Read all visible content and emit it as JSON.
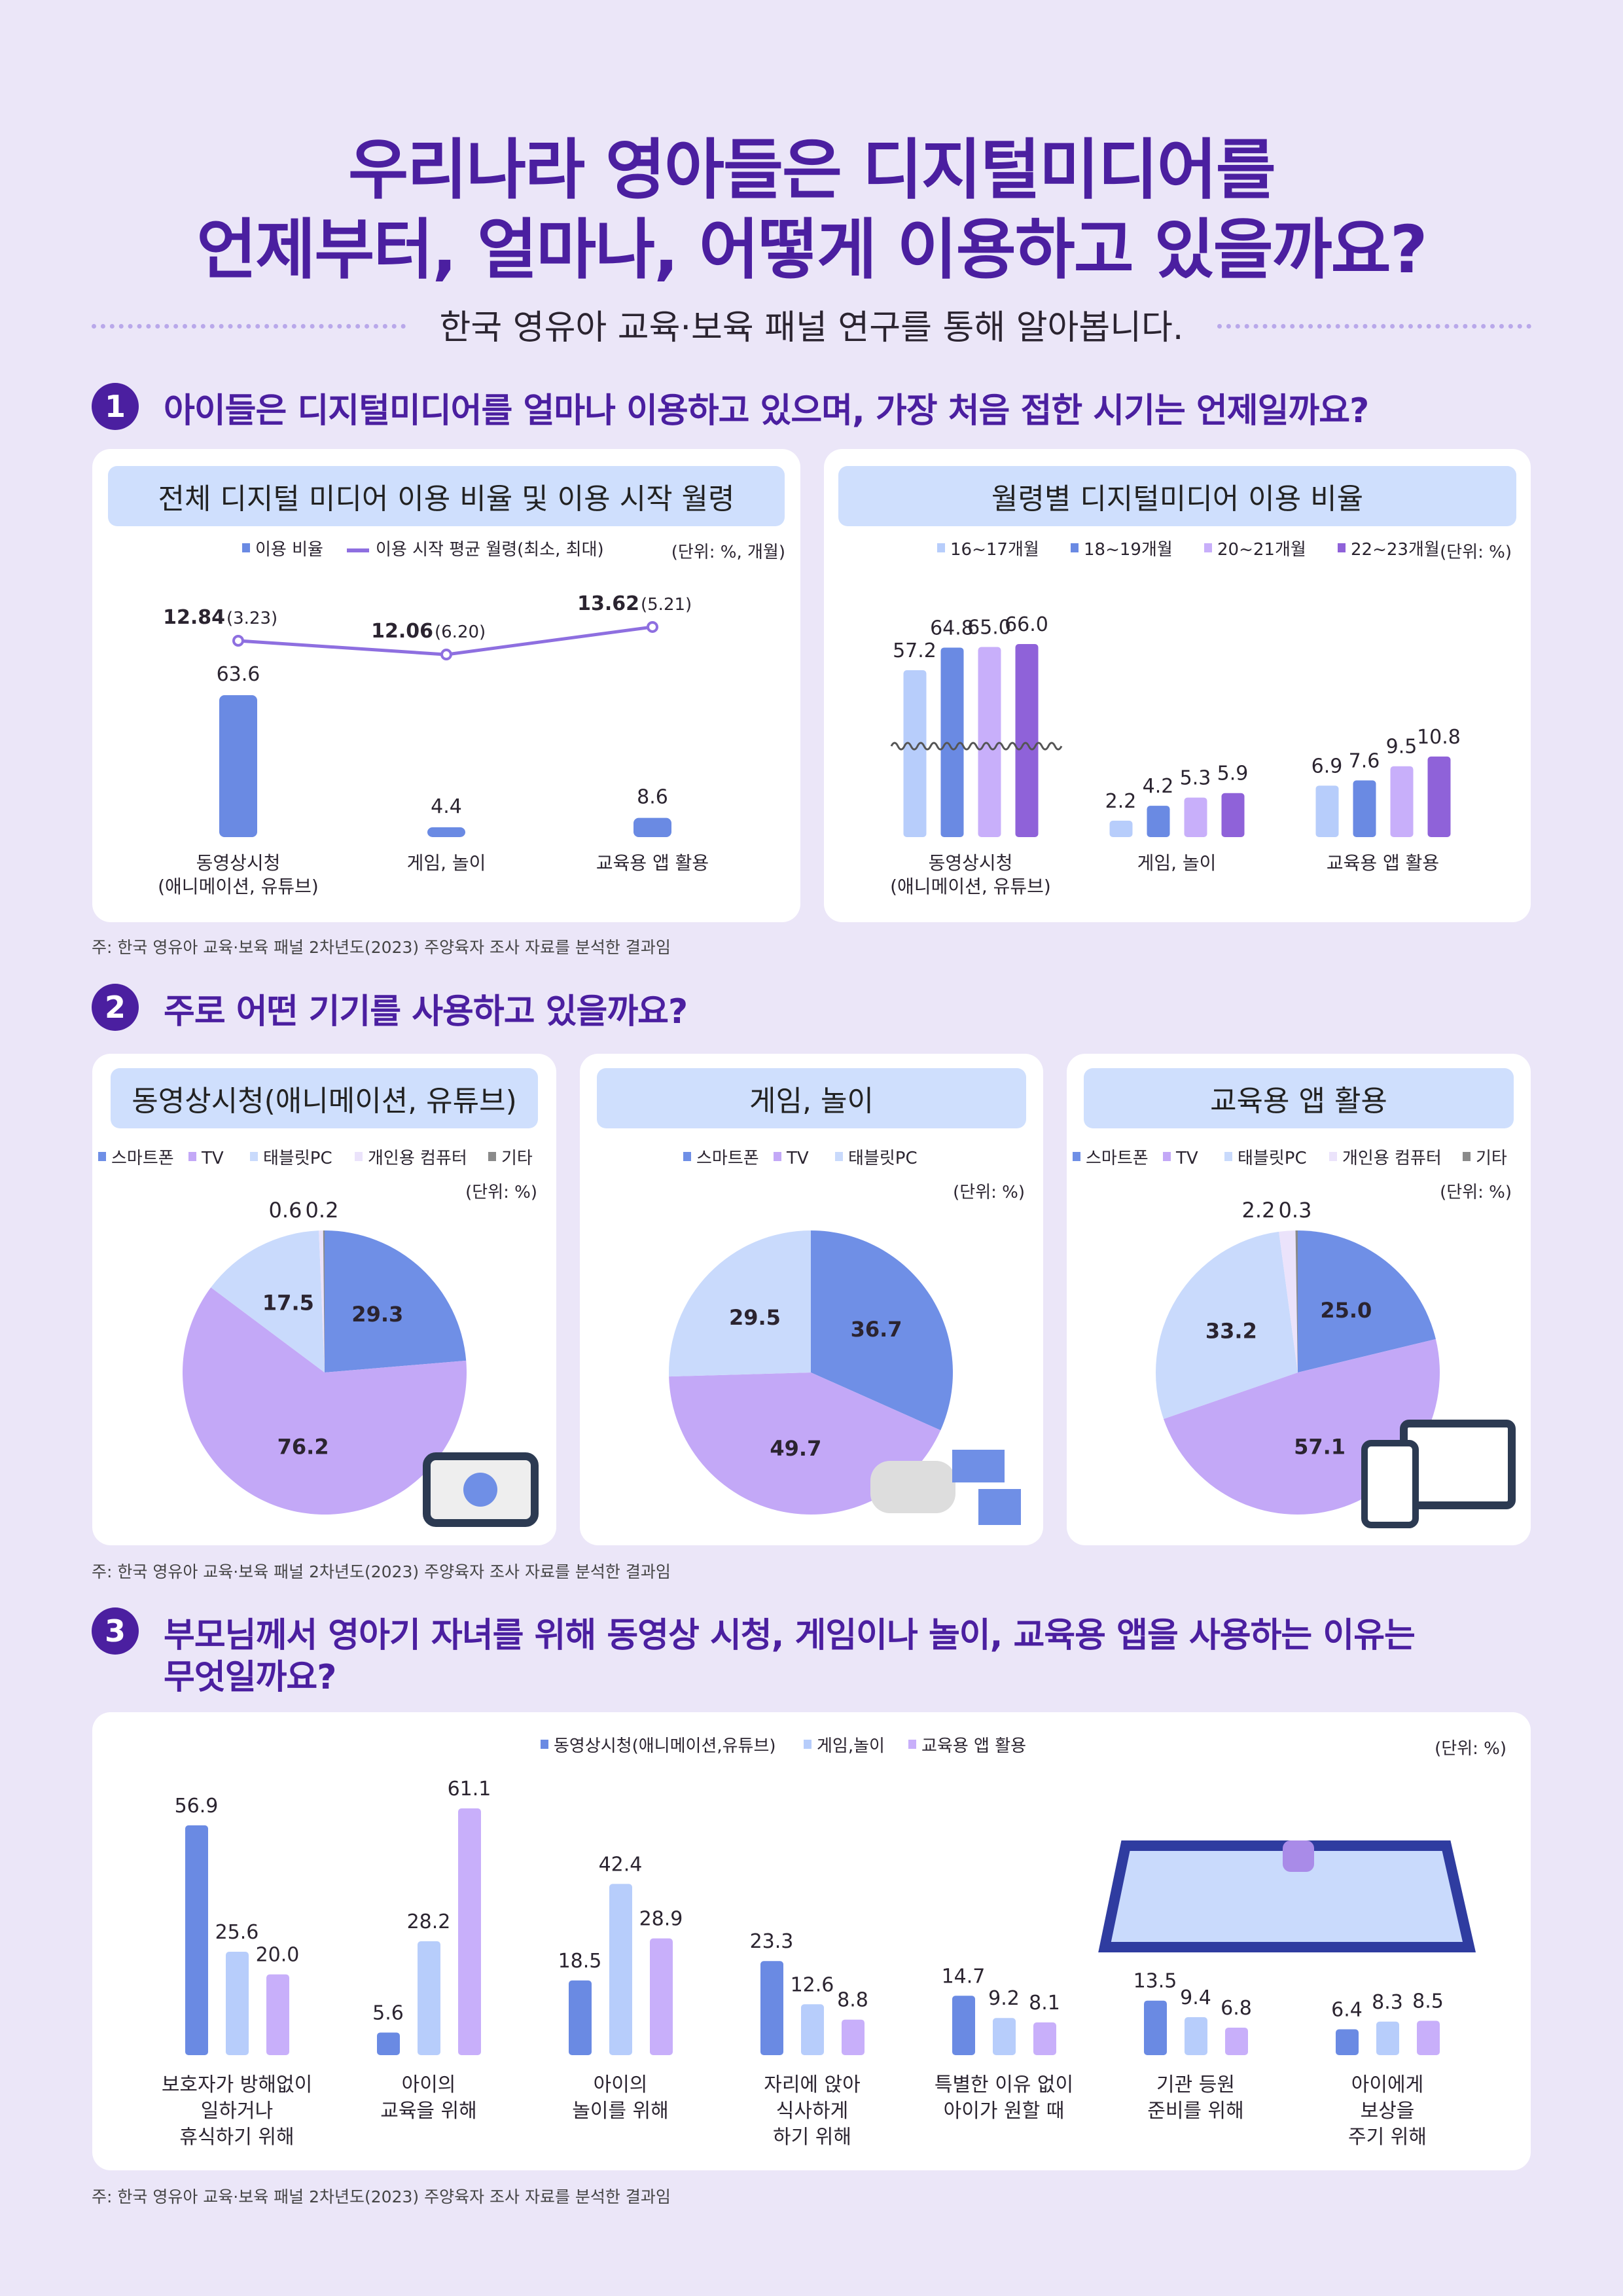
{
  "title": {
    "line1": "우리나라 영아들은 디지털미디어를",
    "line2": "언제부터, 얼마나, 어떻게 이용하고 있을까요?"
  },
  "subtitle": "한국 영유아 교육·보육 패널 연구를 통해 알아봅니다.",
  "sections": [
    {
      "number": "1",
      "heading": "아이들은 디지털미디어를 얼마나 이용하고 있으며, 가장 처음 접한 시기는 언제일까요?"
    },
    {
      "number": "2",
      "heading": "주로 어떤 기기를 사용하고 있을까요?"
    },
    {
      "number": "3",
      "heading": "부모님께서 영아기 자녀를 위해 동영상 시청, 게임이나 놀이, 교육용 앱을 사용하는 이유는",
      "heading2": "무엇일까요?"
    }
  ],
  "note": "주: 한국 영유아 교육·보육 패널 2차년도(2023) 주양육자 조사 자료를 분석한 결과임",
  "colors": {
    "title": "#4b1fa0",
    "smartphone": "#6f8fe6",
    "tv": "#c3a8f7",
    "tablet": "#c9dafc",
    "pc": "#ebe3fb",
    "other": "#8a8a8a",
    "bar_main": "#6a8ae3",
    "line": "#8e6fe0",
    "m16": "#b7cdfb",
    "m18": "#6a8ae3",
    "m20": "#c8affa",
    "m22": "#8f62d9"
  },
  "chart_data": [
    {
      "type": "bar",
      "title": "전체 디지털 미디어 이용 비율 및 이용 시작 월령",
      "unit": "(단위: %, 개월)",
      "categories": [
        "동영상시청\n(애니메이션, 유튜브)",
        "게임, 놀이",
        "교육용 앱 활용"
      ],
      "series": [
        {
          "name": "이용 비율",
          "type": "bar",
          "values": [
            63.6,
            4.4,
            8.6
          ]
        },
        {
          "name": "이용 시작 평균 월령",
          "name_note": "(최소, 최대)",
          "type": "line",
          "values": [
            12.84,
            12.06,
            13.62
          ],
          "labels": [
            "12.84",
            "12.06",
            "13.62"
          ],
          "ranges": [
            "(3.23)",
            "(6.20)",
            "(5.21)"
          ]
        }
      ]
    },
    {
      "type": "bar",
      "title": "월령별 디지털미디어 이용 비율",
      "unit": "(단위: %)",
      "axis_break": true,
      "categories": [
        "동영상시청\n(애니메이션, 유튜브)",
        "게임, 놀이",
        "교육용 앱 활용"
      ],
      "series": [
        {
          "name": "16~17개월",
          "values": [
            57.2,
            2.2,
            6.9
          ]
        },
        {
          "name": "18~19개월",
          "values": [
            64.8,
            4.2,
            7.6
          ]
        },
        {
          "name": "20~21개월",
          "values": [
            65.0,
            5.3,
            9.5
          ]
        },
        {
          "name": "22~23개월",
          "values": [
            66.0,
            5.9,
            10.8
          ]
        }
      ]
    },
    {
      "type": "pie",
      "title": "동영상시청(애니메이션, 유튜브)",
      "unit": "(단위: %)",
      "labels": [
        "스마트폰",
        "TV",
        "태블릿PC",
        "개인용 컴퓨터",
        "기타"
      ],
      "values": [
        29.3,
        76.2,
        17.5,
        0.6,
        0.2
      ]
    },
    {
      "type": "pie",
      "title": "게임, 놀이",
      "unit": "(단위: %)",
      "labels": [
        "스마트폰",
        "TV",
        "태블릿PC"
      ],
      "values": [
        36.7,
        49.7,
        29.5
      ]
    },
    {
      "type": "pie",
      "title": "교육용 앱 활용",
      "unit": "(단위: %)",
      "labels": [
        "스마트폰",
        "TV",
        "태블릿PC",
        "개인용 컴퓨터",
        "기타"
      ],
      "values": [
        25.0,
        57.1,
        33.2,
        2.2,
        0.3
      ]
    },
    {
      "type": "bar",
      "unit": "(단위: %)",
      "categories": [
        "보호자가 방해없이\n일하거나\n휴식하기 위해",
        "아이의\n교육을 위해",
        "아이의\n놀이를 위해",
        "자리에 앉아\n식사하게\n하기 위해",
        "특별한 이유 없이\n아이가 원할 때",
        "기관 등원\n준비를 위해",
        "아이에게\n보상을\n주기 위해"
      ],
      "series": [
        {
          "name": "동영상시청(애니메이션,유튜브)",
          "values": [
            56.9,
            5.6,
            18.5,
            23.3,
            14.7,
            13.5,
            6.4
          ]
        },
        {
          "name": "게임,놀이",
          "values": [
            25.6,
            28.2,
            42.4,
            12.6,
            9.2,
            9.4,
            8.3
          ]
        },
        {
          "name": "교육용 앱 활용",
          "values": [
            20.0,
            61.1,
            28.9,
            8.8,
            8.1,
            6.8,
            8.5
          ]
        }
      ]
    }
  ]
}
